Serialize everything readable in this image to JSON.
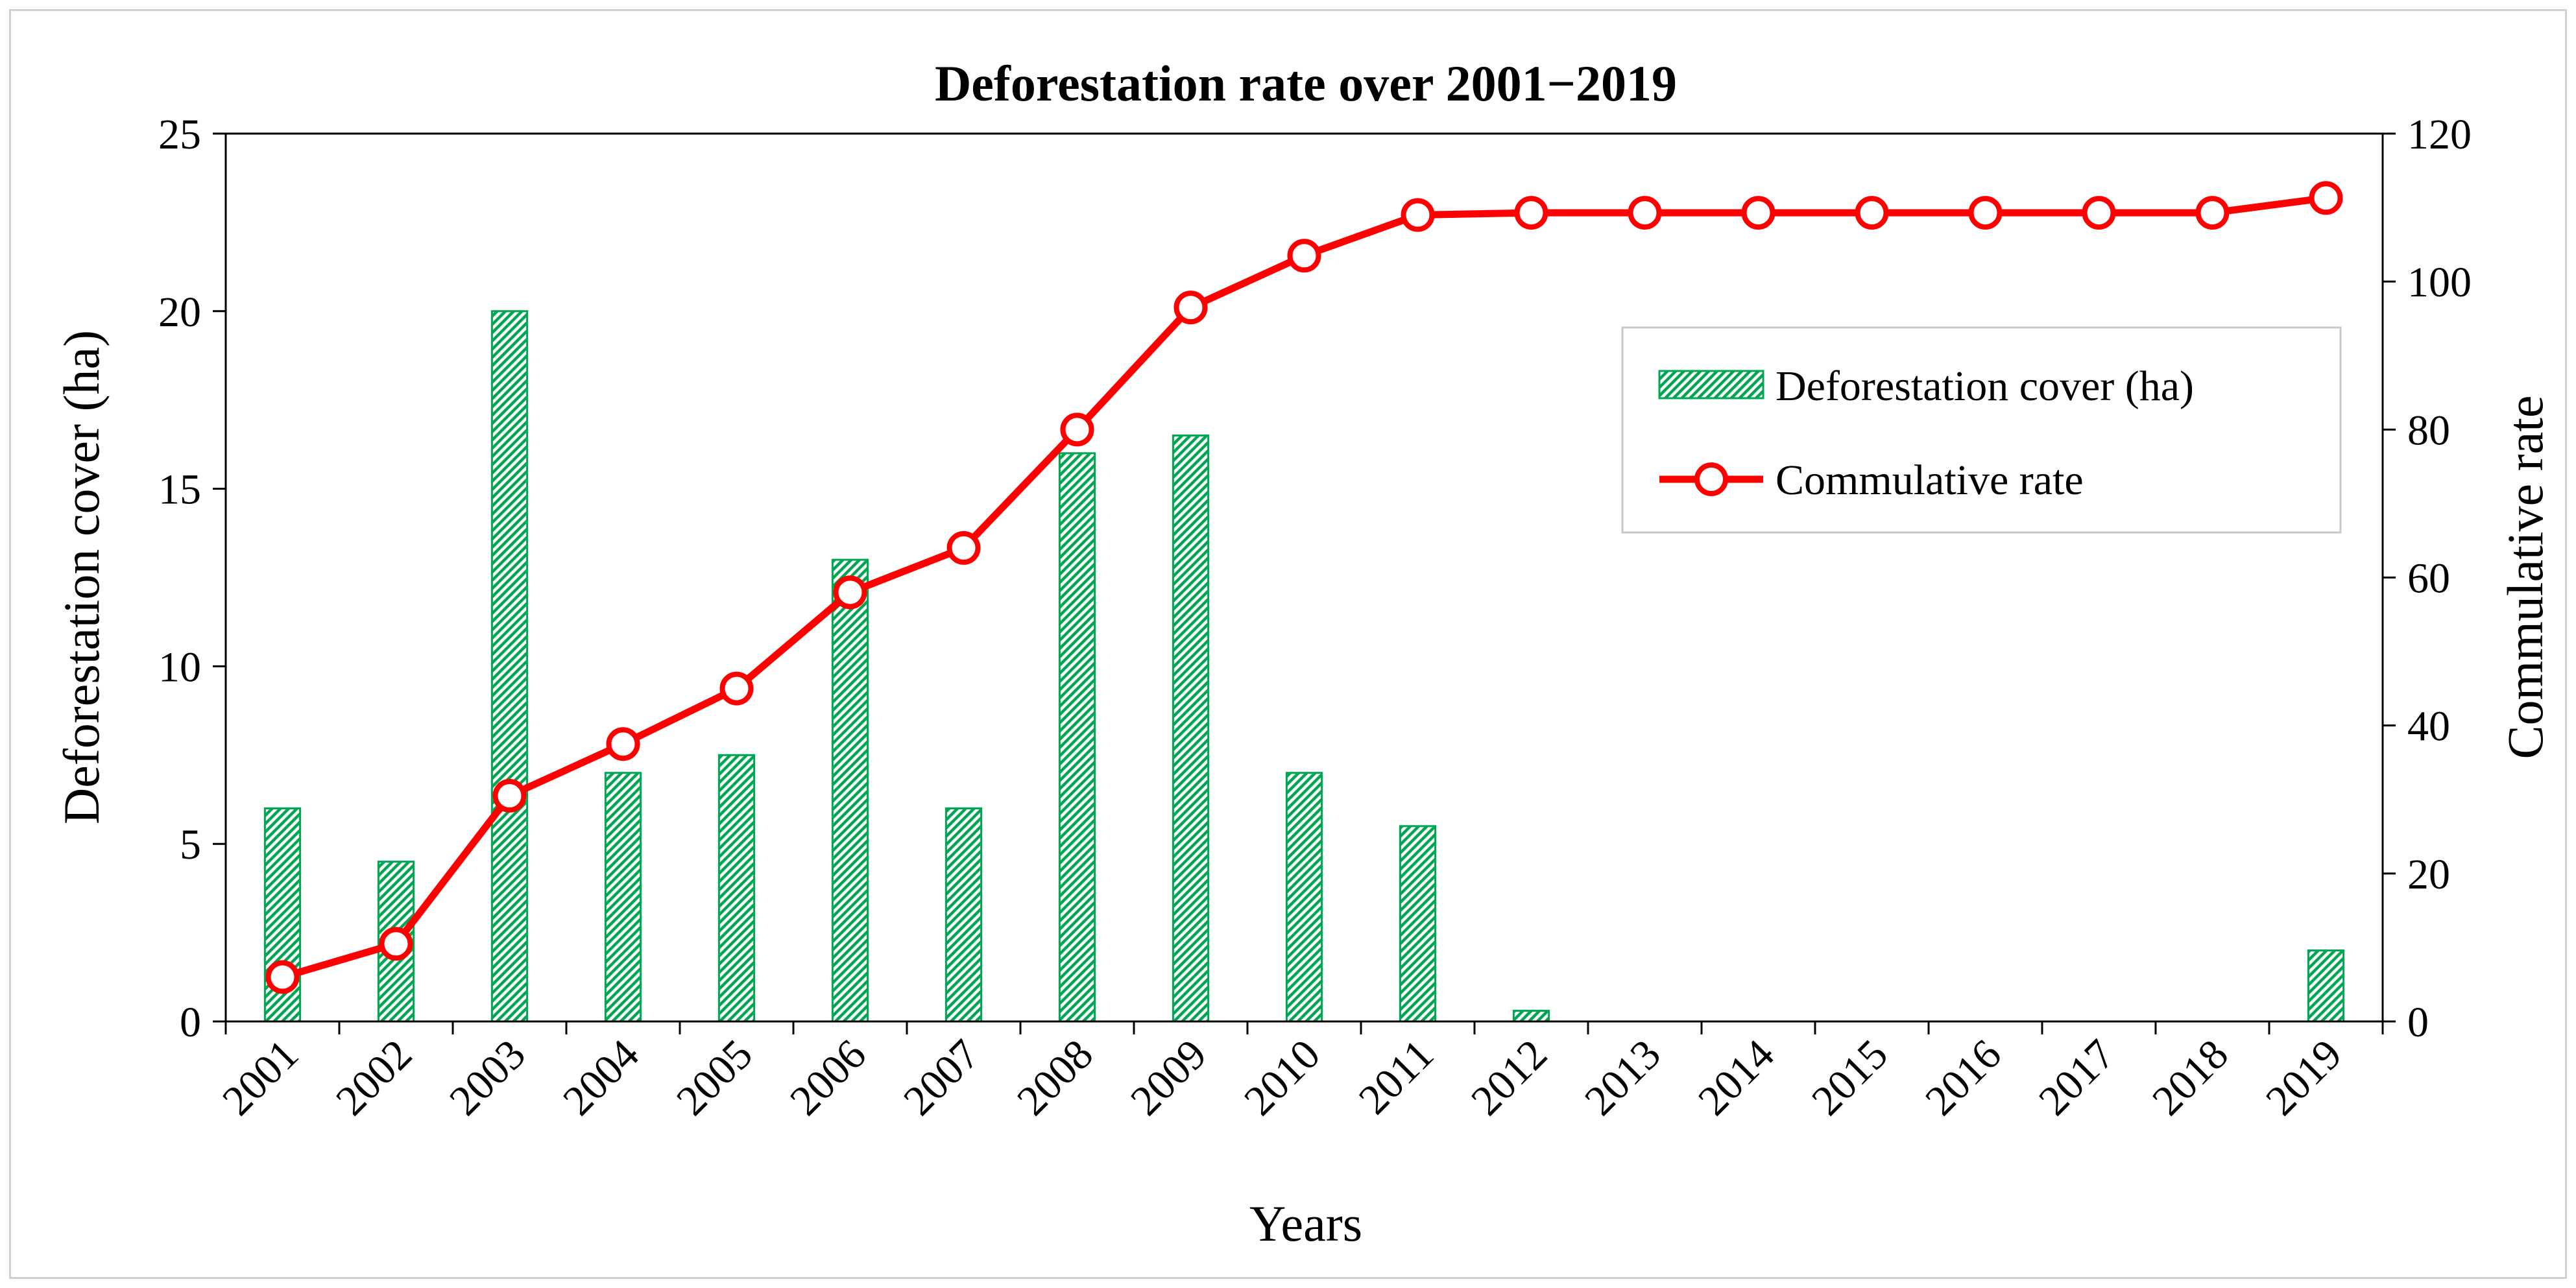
{
  "chart_data": {
    "type": "bar",
    "title": "Deforestation rate over 2001−2019",
    "xlabel": "Years",
    "ylabel": "Deforestation cover (ha)",
    "y2label": "Commulative rate",
    "categories": [
      "2001",
      "2002",
      "2003",
      "2004",
      "2005",
      "2006",
      "2007",
      "2008",
      "2009",
      "2010",
      "2011",
      "2012",
      "2013",
      "2014",
      "2015",
      "2016",
      "2017",
      "2018",
      "2019"
    ],
    "series": [
      {
        "name": "Deforestation cover (ha)",
        "type": "bar",
        "axis": "left",
        "color": "#00a651",
        "values": [
          6,
          4.5,
          20,
          7,
          7.5,
          13,
          6,
          16,
          16.5,
          7,
          5.5,
          0.3,
          0,
          0,
          0,
          0,
          0,
          0,
          2
        ]
      },
      {
        "name": "Commulative rate",
        "type": "line",
        "axis": "right",
        "color": "#ff0000",
        "values": [
          6,
          10.5,
          30.5,
          37.5,
          45,
          58,
          64,
          80,
          96.5,
          103.5,
          109,
          109.3,
          109.3,
          109.3,
          109.3,
          109.3,
          109.3,
          109.3,
          111.3
        ]
      }
    ],
    "ylim": [
      0,
      25
    ],
    "yticks": [
      0,
      5,
      10,
      15,
      20,
      25
    ],
    "y2lim": [
      0,
      120
    ],
    "y2ticks": [
      0,
      20,
      40,
      60,
      80,
      100,
      120
    ],
    "grid": false,
    "legend_position": "top-right"
  }
}
